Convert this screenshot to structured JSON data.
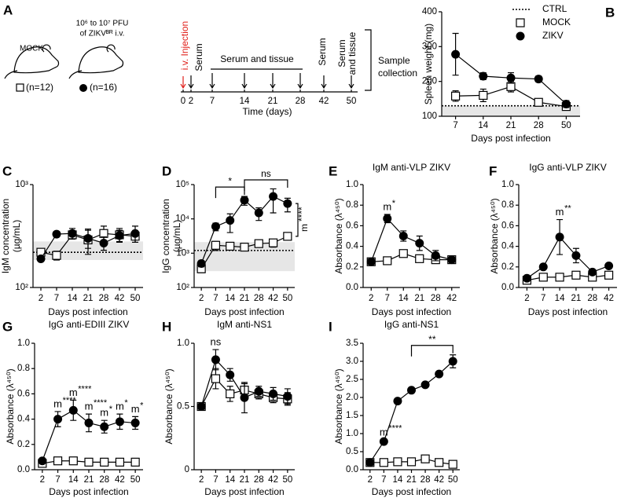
{
  "panel_a": {
    "label": "A",
    "groups": [
      {
        "name": [
          "MOCK"
        ],
        "count": "(n=12)"
      },
      {
        "name": [
          "10⁶ to 10⁷ PFU",
          "of ZIKVᴮᴿ i.v."
        ],
        "count": "(n=16)"
      }
    ],
    "injection": "i.v. Injection",
    "timeline": {
      "ticks": [
        0,
        2,
        7,
        14,
        21,
        28,
        42,
        50
      ],
      "label": "Time (days)"
    },
    "events": {
      "first": "Serum",
      "middle": "Serum and tissue",
      "late": "Serum",
      "last": [
        "Serum",
        "and tissue"
      ]
    },
    "collection": [
      "Sample",
      "collection"
    ]
  },
  "chart_data": [
    {
      "type": "line",
      "panel": "B",
      "y_label": [
        "Spleen weight (mg)"
      ],
      "x_label": "Days post infection",
      "categories": [
        7,
        14,
        21,
        28,
        50
      ],
      "ylim": [
        100,
        400
      ],
      "yticks": [
        100,
        200,
        300,
        400
      ],
      "reference": {
        "name": "CTRL",
        "value": 130,
        "range": [
          100,
          130
        ]
      },
      "legend": "top-right",
      "series": [
        {
          "name": "MOCK",
          "color": "#000000",
          "marker": "square",
          "values": [
            158,
            160,
            185,
            140,
            128
          ],
          "errors": [
            15,
            18,
            15,
            8,
            5
          ]
        },
        {
          "name": "ZIKV",
          "color": "#000000",
          "marker": "circle",
          "values": [
            278,
            215,
            210,
            207,
            135
          ],
          "errors": [
            60,
            10,
            15,
            8,
            10
          ]
        }
      ]
    },
    {
      "type": "line",
      "panel": "C",
      "y_label": [
        "IgM concentration",
        "(µg/mL)"
      ],
      "x_label": "Days post infection",
      "log": true,
      "categories": [
        2,
        7,
        14,
        21,
        28,
        42,
        50
      ],
      "ylim": [
        100,
        1000
      ],
      "yticks": [
        {
          "value": 100,
          "label": "10²"
        },
        {
          "value": 1000,
          "label": "10³"
        }
      ],
      "reference": {
        "value": 220,
        "range": [
          185,
          280
        ]
      },
      "series": [
        {
          "name": "MOCK",
          "color": "#000000",
          "marker": "square",
          "values": [
            220,
            205,
            325,
            290,
            335,
            325,
            315
          ],
          "errors": [
            15,
            20,
            30,
            80,
            60,
            50,
            40
          ]
        },
        {
          "name": "ZIKV",
          "color": "#000000",
          "marker": "circle",
          "values": [
            190,
            330,
            335,
            300,
            270,
            320,
            335
          ],
          "errors": [
            10,
            20,
            40,
            60,
            40,
            40,
            60
          ]
        }
      ]
    },
    {
      "type": "line",
      "panel": "D",
      "y_label": [
        "IgG concentration",
        "(µg/mL)"
      ],
      "x_label": "Days post infection",
      "log": true,
      "categories": [
        2,
        7,
        14,
        21,
        28,
        42,
        50
      ],
      "ylim": [
        100,
        100000
      ],
      "yticks": [
        {
          "value": 100,
          "label": "10²"
        },
        {
          "value": 1000,
          "label": "10³"
        },
        {
          "value": 10000,
          "label": "10⁴"
        },
        {
          "value": 100000,
          "label": "10⁵"
        }
      ],
      "reference": {
        "value": 1200,
        "range": [
          300,
          2100
        ]
      },
      "series": [
        {
          "name": "MOCK",
          "color": "#000000",
          "marker": "square",
          "values": [
            350,
            1700,
            1600,
            1500,
            1900,
            2000,
            3100
          ],
          "errors": [
            80,
            500,
            300,
            300,
            400,
            500,
            600
          ]
        },
        {
          "name": "ZIKV",
          "color": "#000000",
          "marker": "circle",
          "values": [
            500,
            6000,
            9000,
            35000,
            15000,
            45000,
            28000
          ],
          "errors": [
            100,
            1500,
            5000,
            10000,
            6000,
            30000,
            12000
          ]
        }
      ],
      "annotations": [
        {
          "from": 7,
          "to": 21,
          "text": "*"
        },
        {
          "from": 21,
          "to": 50,
          "text": "ns"
        },
        {
          "side": true,
          "text": "m",
          "stars": "****"
        }
      ]
    },
    {
      "type": "line",
      "panel": "E",
      "title": "IgM anti-VLP ZIKV",
      "y_label": [
        "Absorbance (λ⁴⁵⁰)"
      ],
      "x_label": "Days post infection",
      "categories": [
        2,
        7,
        14,
        21,
        28,
        42
      ],
      "ylim": [
        0,
        1
      ],
      "yticks": [
        {
          "value": 0,
          "label": "0.0"
        },
        0.2,
        0.4,
        0.6,
        0.8,
        {
          "value": 1,
          "label": "1.0"
        }
      ],
      "series": [
        {
          "name": "MOCK",
          "color": "#000000",
          "marker": "square",
          "values": [
            0.25,
            0.26,
            0.33,
            0.28,
            0.27,
            0.27
          ],
          "errors": [
            0.02,
            0.02,
            0.03,
            0.02,
            0.03,
            0.02
          ]
        },
        {
          "name": "ZIKV",
          "color": "#000000",
          "marker": "circle",
          "values": [
            0.25,
            0.67,
            0.5,
            0.43,
            0.31,
            0.27
          ],
          "errors": [
            0.02,
            0.04,
            0.05,
            0.07,
            0.05,
            0.02
          ]
        }
      ],
      "annotations": [
        {
          "at": 7,
          "text": "m",
          "stars": "*"
        }
      ]
    },
    {
      "type": "line",
      "panel": "F",
      "title": "IgG anti-VLP ZIKV",
      "y_label": [
        "Absorbance (λ⁴⁵⁰)"
      ],
      "x_label": "Days post infection",
      "categories": [
        2,
        7,
        14,
        21,
        28,
        42
      ],
      "ylim": [
        0,
        1
      ],
      "yticks": [
        {
          "value": 0,
          "label": "0.0"
        },
        0.2,
        0.4,
        0.6,
        0.8,
        {
          "value": 1,
          "label": "1.0"
        }
      ],
      "series": [
        {
          "name": "MOCK",
          "color": "#000000",
          "marker": "square",
          "values": [
            0.07,
            0.1,
            0.1,
            0.12,
            0.1,
            0.12
          ],
          "errors": [
            0.01,
            0.01,
            0.01,
            0.02,
            0.01,
            0.01
          ]
        },
        {
          "name": "ZIKV",
          "color": "#000000",
          "marker": "circle",
          "values": [
            0.09,
            0.2,
            0.49,
            0.31,
            0.15,
            0.21
          ],
          "errors": [
            0.01,
            0.02,
            0.17,
            0.07,
            0.02,
            0.02
          ]
        }
      ],
      "annotations": [
        {
          "at": 14,
          "text": "m",
          "stars": "**"
        }
      ]
    },
    {
      "type": "line",
      "panel": "G",
      "title": "IgG anti-EDIII ZIKV",
      "y_label": [
        "Absorbance (λ⁴⁵⁰)"
      ],
      "x_label": "Days post infection",
      "categories": [
        2,
        7,
        14,
        21,
        28,
        42,
        50
      ],
      "ylim": [
        0,
        1
      ],
      "yticks": [
        {
          "value": 0,
          "label": "0.0"
        },
        0.2,
        0.4,
        0.6,
        0.8,
        {
          "value": 1,
          "label": "1.0"
        }
      ],
      "series": [
        {
          "name": "MOCK",
          "color": "#000000",
          "marker": "square",
          "values": [
            0.05,
            0.07,
            0.07,
            0.06,
            0.06,
            0.06,
            0.06
          ],
          "errors": [
            0.01,
            0.01,
            0.01,
            0.01,
            0.01,
            0.01,
            0.01
          ]
        },
        {
          "name": "ZIKV",
          "color": "#000000",
          "marker": "circle",
          "values": [
            0.07,
            0.4,
            0.47,
            0.37,
            0.34,
            0.38,
            0.37
          ],
          "errors": [
            0.01,
            0.06,
            0.08,
            0.07,
            0.05,
            0.06,
            0.05
          ]
        }
      ],
      "annotations": [
        {
          "at": 7,
          "text": "m",
          "stars": "****"
        },
        {
          "at": 14,
          "text": "m",
          "stars": "****"
        },
        {
          "at": 21,
          "text": "m",
          "stars": "****"
        },
        {
          "at": 28,
          "text": "m",
          "stars": "*"
        },
        {
          "at": 42,
          "text": "m",
          "stars": "*"
        },
        {
          "at": 50,
          "text": "m",
          "stars": "*"
        }
      ]
    },
    {
      "type": "line",
      "panel": "H",
      "title": "IgM anti-NS1",
      "y_label": [
        "Absorbance (λ⁴⁵⁰)"
      ],
      "x_label": "Days post infection",
      "categories": [
        2,
        7,
        14,
        21,
        28,
        42,
        50
      ],
      "ylim": [
        0,
        1
      ],
      "yticks": [
        0,
        0.5,
        {
          "value": 1,
          "label": "1.0"
        }
      ],
      "series": [
        {
          "name": "MOCK",
          "color": "#000000",
          "marker": "square",
          "values": [
            0.5,
            0.72,
            0.6,
            0.63,
            0.6,
            0.57,
            0.56
          ],
          "errors": [
            0.02,
            0.08,
            0.06,
            0.05,
            0.04,
            0.04,
            0.05
          ]
        },
        {
          "name": "ZIKV",
          "color": "#000000",
          "marker": "circle",
          "values": [
            0.5,
            0.87,
            0.75,
            0.57,
            0.62,
            0.6,
            0.58
          ],
          "errors": [
            0.02,
            0.08,
            0.05,
            0.12,
            0.04,
            0.05,
            0.06
          ]
        }
      ],
      "annotations": [
        {
          "at": 7,
          "text": "ns"
        }
      ]
    },
    {
      "type": "line",
      "panel": "I",
      "title": "IgG anti-NS1",
      "y_label": [
        "Absorbance (λ⁴⁵⁰)"
      ],
      "x_label": "Days post infection",
      "categories": [
        2,
        7,
        14,
        21,
        28,
        42,
        50
      ],
      "ylim": [
        0,
        3.5
      ],
      "yticks": [
        {
          "value": 0,
          "label": "0.0"
        },
        0.5,
        {
          "value": 1,
          "label": "1.0"
        },
        1.5,
        {
          "value": 2,
          "label": "2.0"
        },
        2.5,
        {
          "value": 3,
          "label": "3.0"
        },
        3.5
      ],
      "series": [
        {
          "name": "MOCK",
          "color": "#000000",
          "marker": "square",
          "values": [
            0.2,
            0.2,
            0.22,
            0.22,
            0.3,
            0.2,
            0.15
          ],
          "errors": [
            0.02,
            0.02,
            0.02,
            0.02,
            0.03,
            0.02,
            0.02
          ]
        },
        {
          "name": "ZIKV",
          "color": "#000000",
          "marker": "circle",
          "values": [
            0.2,
            0.78,
            1.9,
            2.2,
            2.35,
            2.65,
            3.0
          ],
          "errors": [
            0.02,
            0.05,
            0.05,
            0.05,
            0.05,
            0.05,
            0.18
          ]
        }
      ],
      "annotations": [
        {
          "at": 7,
          "text": "m",
          "stars": "****"
        },
        {
          "from": 21,
          "to": 50,
          "text": "**"
        }
      ]
    }
  ]
}
